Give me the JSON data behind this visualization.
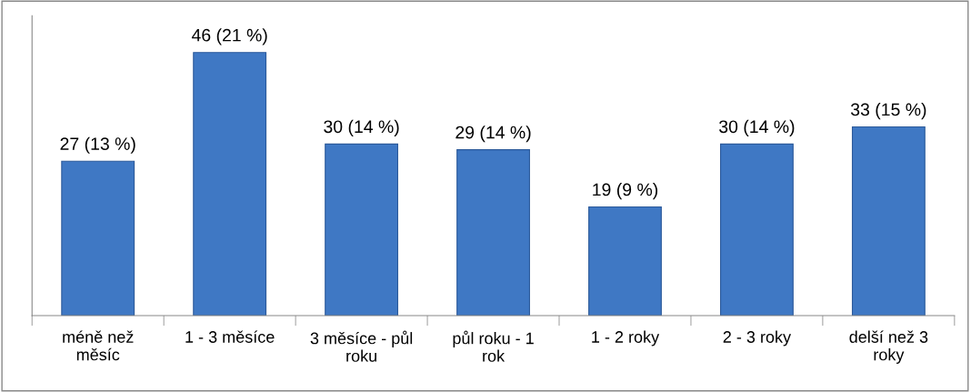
{
  "chart_data": {
    "type": "bar",
    "categories": [
      "méně než\nměsíc",
      "1 - 3 měsíce",
      "3 měsíce - půl\nroku",
      "půl roku - 1\nrok",
      "1 - 2 roky",
      "2 - 3 roky",
      "delší než 3\nroky"
    ],
    "values": [
      27,
      46,
      30,
      29,
      19,
      30,
      33
    ],
    "value_labels": [
      "27 (13 %)",
      "46 (21 %)",
      "30 (14 %)",
      "29 (14 %)",
      "19 (9 %)",
      "30 (14 %)",
      "33 (15 %)"
    ],
    "color": "#3f78c4",
    "grid": false,
    "legend": false
  }
}
